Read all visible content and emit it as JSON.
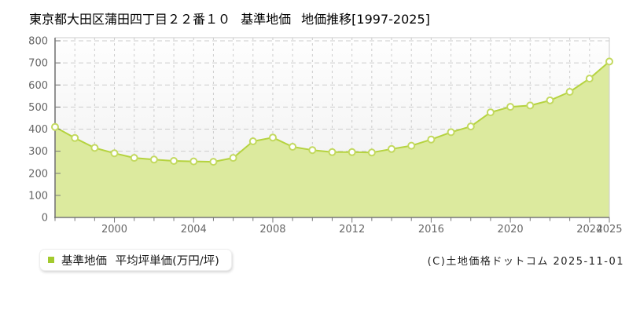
{
  "title": "東京都大田区蒲田四丁目２２番１０ 基準地価 地価推移[1997-2025]",
  "legend": {
    "label": "基準地価 平均坪単価(万円/坪)"
  },
  "footer": {
    "copyright": "(C)土地価格ドットコム 2025-11-01"
  },
  "chart_data": {
    "type": "area",
    "title": "東京都大田区蒲田四丁目２２番１０ 基準地価 地価推移[1997-2025]",
    "xlabel": "",
    "ylabel": "平均坪単価(万円/坪)",
    "x": [
      1997,
      1998,
      1999,
      2000,
      2001,
      2002,
      2003,
      2004,
      2005,
      2006,
      2007,
      2008,
      2009,
      2010,
      2011,
      2012,
      2013,
      2014,
      2015,
      2016,
      2017,
      2018,
      2019,
      2020,
      2021,
      2022,
      2023,
      2024,
      2025
    ],
    "values": [
      410,
      360,
      315,
      291,
      270,
      262,
      256,
      254,
      252,
      270,
      345,
      362,
      320,
      305,
      296,
      296,
      294,
      310,
      325,
      353,
      386,
      412,
      476,
      501,
      507,
      530,
      569,
      629,
      706
    ],
    "series_name": "基準地価 平均坪単価(万円/坪)",
    "ylim": [
      0,
      800
    ],
    "ytick_step": 100,
    "xtick_labeled_years": [
      2000,
      2004,
      2008,
      2012,
      2016,
      2020,
      2024,
      2025
    ],
    "grid": true,
    "legend_position": "bottom-left",
    "colors": {
      "line": "#b5d33f",
      "fill": "#dcea9e",
      "marker_fill": "#ffffff",
      "marker_stroke": "#c3d95f",
      "legend_swatch": "#a3ca2e",
      "grid": "#cccccc",
      "axis": "#777777",
      "tick_label": "#666666",
      "plot_bg_top": "#fefefe",
      "plot_bg_bottom": "#efefef",
      "border_light": "#cccccc"
    }
  }
}
